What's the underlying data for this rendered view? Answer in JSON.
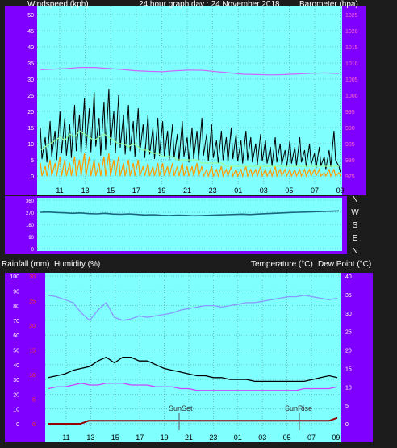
{
  "panel_top": {
    "left_title": "Windspeed (kph)",
    "center_title": "24 hour graph day : 24 November 2018",
    "right_title": "Barometer (hpa)"
  },
  "panel_mid": {
    "compass_labels": [
      "N",
      "W",
      "S",
      "E",
      "N"
    ]
  },
  "panel_bottom": {
    "rain_label": "Rainfall (mm)",
    "humidity_label": "Humidity (%)",
    "temp_label": "Temperature (°C)",
    "dew_label": "Dew Point (°C)",
    "sunset_label": "SunSet",
    "sunrise_label": "SunRise"
  },
  "colors": {
    "background": "#1c1c1c",
    "plot_bg": "#80ffff",
    "axis_band": "#8000ff",
    "grid": "#66b3b3",
    "wind_gust": "#000000",
    "wind_avg": "#ff9900",
    "wind_light": "#99ff99",
    "barometer": "#cc66ff",
    "direction": "#1a6680",
    "humidity": "#8899ff",
    "temperature": "#000000",
    "dewpoint": "#cc44ff",
    "rain": "#990000"
  },
  "chart_data": [
    {
      "type": "line",
      "panel": "wind",
      "x_tick_labels": [
        "11",
        "13",
        "15",
        "17",
        "19",
        "21",
        "23",
        "01",
        "03",
        "05",
        "07",
        "09"
      ],
      "y_left_ticks": [
        0,
        5,
        10,
        15,
        20,
        25,
        30,
        35,
        40,
        45,
        50
      ],
      "y_right_ticks": [
        975,
        980,
        985,
        990,
        995,
        1000,
        1005,
        1010,
        1015,
        1020,
        1025
      ],
      "ylim_left": [
        0,
        50
      ],
      "ylim_right": [
        975,
        1025
      ],
      "series": [
        {
          "axis": "right",
          "color_key": "barometer",
          "values": [
            1007.9,
            1008.1,
            1008.3,
            1008.6,
            1008.6,
            1008.3,
            1008.0,
            1007.6,
            1007.4,
            1007.3,
            1007.6,
            1007.8,
            1007.7,
            1007.3,
            1006.9,
            1006.5,
            1006.4,
            1006.3,
            1006.4,
            1006.6,
            1006.8,
            1006.9,
            1006.7
          ]
        },
        {
          "axis": "left",
          "color_key": "wind_gust",
          "values": [
            15,
            12,
            17,
            14,
            20,
            18,
            16,
            22,
            19,
            24,
            21,
            26,
            18,
            23,
            27,
            20,
            25,
            19,
            22,
            17,
            21,
            16,
            19,
            15,
            18,
            17,
            14,
            16,
            13,
            17,
            12,
            15,
            14,
            18,
            13,
            16,
            11,
            14,
            12,
            15,
            13,
            11,
            14,
            12,
            10,
            13,
            11,
            9,
            12,
            10,
            8,
            11,
            9,
            12,
            8,
            10,
            7,
            9,
            6,
            8,
            14,
            3
          ]
        },
        {
          "axis": "left",
          "color_key": "wind_avg",
          "values": [
            4,
            3,
            5,
            4,
            6,
            5,
            4,
            6,
            5,
            7,
            6,
            5,
            4,
            6,
            7,
            5,
            6,
            4,
            5,
            4,
            5,
            3,
            4,
            3,
            4,
            4,
            3,
            4,
            3,
            4,
            3,
            3,
            4,
            3,
            2,
            3,
            2,
            3,
            2,
            3,
            2,
            2,
            3,
            2,
            2,
            3,
            2,
            2,
            3,
            2,
            2,
            2,
            2,
            2,
            2,
            2,
            2,
            2,
            1,
            2,
            2,
            1
          ]
        },
        {
          "axis": "left",
          "color_key": "wind_light",
          "values": [
            8,
            9,
            10,
            11,
            12,
            11,
            13,
            12,
            14,
            13,
            12,
            11,
            12,
            13,
            12,
            11,
            10,
            10,
            9,
            10,
            9,
            8,
            8,
            7,
            7,
            6,
            6,
            6,
            5,
            5,
            5,
            5,
            5,
            4,
            4,
            4,
            4,
            4,
            3,
            3,
            3,
            3,
            3,
            3,
            3,
            3,
            3,
            3,
            3,
            3,
            3,
            3,
            3,
            3,
            3,
            3,
            3,
            3,
            3,
            3,
            3,
            3
          ]
        }
      ]
    },
    {
      "type": "line",
      "panel": "direction",
      "series": [
        {
          "color_key": "direction",
          "values": [
            270,
            272,
            268,
            266,
            262,
            265,
            260,
            258,
            262,
            257,
            255,
            258,
            254,
            250,
            252,
            248,
            246,
            249,
            247,
            244,
            246,
            248,
            250,
            252,
            254,
            256,
            253,
            257,
            260,
            262,
            265,
            268,
            270,
            272,
            274,
            276,
            278,
            280
          ]
        }
      ]
    },
    {
      "type": "line",
      "panel": "temp",
      "x_tick_labels": [
        "11",
        "13",
        "15",
        "17",
        "19",
        "21",
        "23",
        "01",
        "03",
        "05",
        "07",
        "09"
      ],
      "y_left_ticks": [
        0,
        10,
        20,
        30,
        40,
        50,
        60,
        70,
        80,
        90,
        100
      ],
      "y_rain_ticks": [
        0,
        5,
        10,
        15,
        20,
        25,
        30
      ],
      "y_right_ticks": [
        0,
        5,
        10,
        15,
        20,
        25,
        30,
        35,
        40
      ],
      "series": [
        {
          "axis": "left",
          "color_key": "humidity",
          "values": [
            87,
            86,
            84,
            82,
            75,
            70,
            77,
            82,
            72,
            70,
            71,
            73,
            72,
            73,
            74,
            75,
            77,
            78,
            79,
            80,
            80,
            79,
            80,
            81,
            82,
            82,
            83,
            84,
            85,
            86,
            86,
            87,
            86,
            85,
            84,
            85
          ]
        },
        {
          "axis": "right",
          "color_key": "temperature",
          "values": [
            12.5,
            13,
            13.5,
            14.5,
            15,
            15.5,
            17,
            18,
            16.5,
            18,
            18,
            17,
            17,
            16,
            15,
            14.5,
            14,
            13.5,
            13,
            13,
            12.5,
            12.5,
            12,
            12,
            12,
            11.5,
            11.5,
            11.5,
            11.5,
            11.5,
            11.5,
            11.5,
            12,
            12.5,
            13,
            12.5
          ]
        },
        {
          "axis": "right",
          "color_key": "dewpoint",
          "values": [
            9.5,
            10,
            10,
            10.5,
            11,
            10.5,
            10.5,
            11,
            11,
            11,
            10.5,
            10.5,
            10.5,
            10,
            10,
            10,
            9.5,
            9.5,
            9,
            9,
            9,
            9,
            9,
            9,
            9,
            9,
            9,
            9,
            9,
            9,
            9,
            9.5,
            9.5,
            9.5,
            9.5,
            10
          ]
        },
        {
          "axis": "rain",
          "color_key": "rain",
          "values": [
            0,
            0,
            0,
            0,
            0,
            0.6,
            0.6,
            0.6,
            0.6,
            0.6,
            0.6,
            0.6,
            0.6,
            0.6,
            0.6,
            0.6,
            0.6,
            0.6,
            0.6,
            0.6,
            0.6,
            0.6,
            0.6,
            0.6,
            0.6,
            0.6,
            0.6,
            0.6,
            0.6,
            0.6,
            0.6,
            0.6,
            0.6,
            0.6,
            0.6,
            0.6,
            1.2
          ]
        }
      ]
    }
  ]
}
